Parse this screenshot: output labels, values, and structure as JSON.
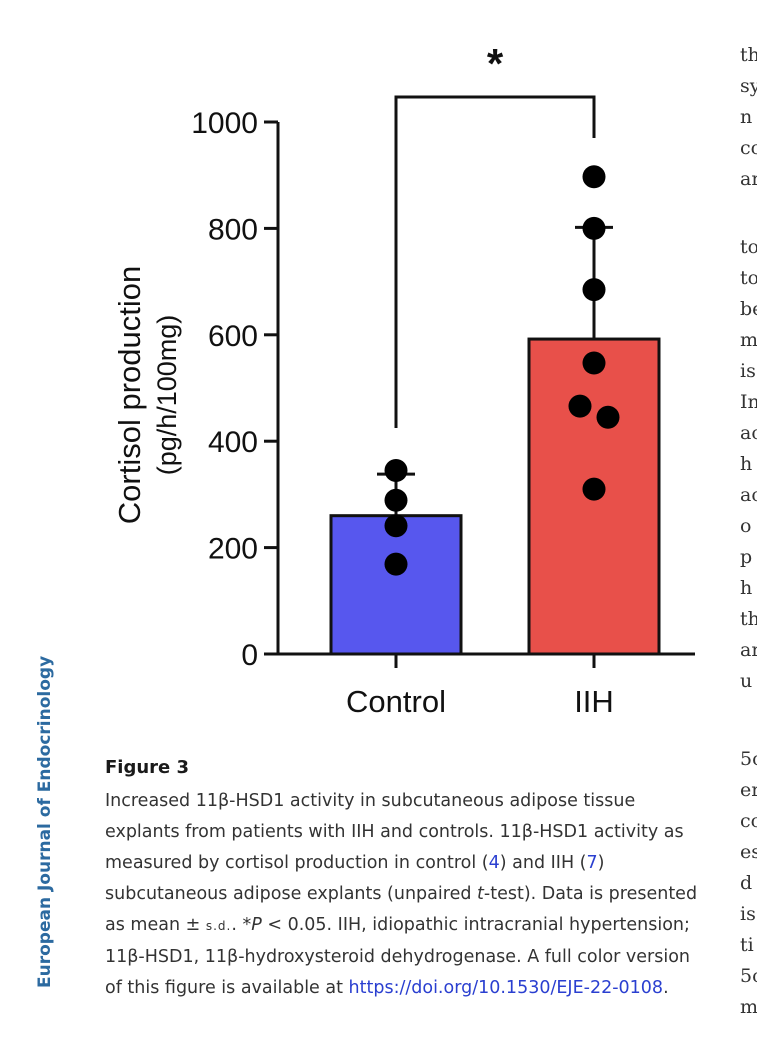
{
  "journal_name": "European Journal of Endocrinology",
  "chart_data": {
    "type": "bar",
    "categories": [
      "Control",
      "IIH"
    ],
    "values": [
      260,
      592
    ],
    "sd": [
      78,
      210
    ],
    "points": [
      [
        345,
        289,
        241,
        169
      ],
      [
        897,
        800,
        685,
        547,
        466,
        445,
        310
      ]
    ],
    "colors": [
      "#5757ee",
      "#e8504a"
    ],
    "ylabel_line1": "Cortisol production",
    "ylabel_line2": "(pg/h/100mg)",
    "yticks": [
      0,
      200,
      400,
      600,
      800,
      1000
    ],
    "ylim": [
      0,
      1000
    ],
    "significance": "*"
  },
  "caption": {
    "title": "Figure 3",
    "s1": "Increased 11β-HSD1 activity in subcutaneous adipose tissue explants from patients with IIH and controls. 11β-HSD1 activity as measured by cortisol production in control (",
    "ref1": "4",
    "s2": ") and IIH (",
    "ref2": "7",
    "s3": ") subcutaneous adipose explants (unpaired ",
    "t_italic": "t",
    "s4": "-test). Data is presented as mean ± ",
    "sd_label": "s.d.",
    "s5": ". *",
    "p_italic": "P",
    "s6": " < 0.05. IIH, idiopathic intracranial hypertension; 11β-HSD1, 11β-hydroxysteroid dehydrogenase. A full color version of this figure is available at ",
    "link": "https://doi.org/10.1530/EJE-22-0108",
    "s7": "."
  },
  "right_column_fragments": [
    "th",
    "sy",
    "n",
    "co",
    "ar",
    "to",
    "to",
    "be",
    "m",
    "is",
    "In",
    "ac",
    "h",
    "ac",
    "o",
    "p",
    "h",
    "th",
    "ar",
    "u",
    "5c",
    "er",
    "co",
    "es",
    "d",
    "is",
    "ti",
    "5c",
    "m"
  ]
}
